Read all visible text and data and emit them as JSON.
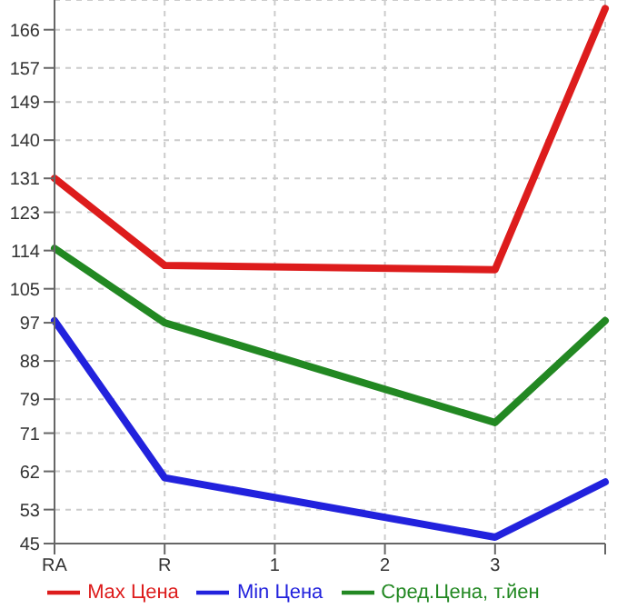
{
  "chart_data": {
    "type": "line",
    "categories": [
      "RA",
      "R",
      "1",
      "2",
      "3",
      null
    ],
    "series": [
      {
        "name": "Max Цена",
        "color": "#dd1c1c",
        "values": [
          131,
          110.5,
          null,
          null,
          109.5,
          171
        ]
      },
      {
        "name": "Min Цена",
        "color": "#2222dd",
        "values": [
          97.5,
          60.5,
          null,
          null,
          46.5,
          59.5
        ]
      },
      {
        "name": "Сред.Цена, т.йен",
        "color": "#228822",
        "values": [
          114.5,
          97,
          null,
          null,
          73.5,
          97.5
        ]
      }
    ],
    "ylim": [
      45,
      173
    ],
    "yticks": [
      45,
      53,
      62,
      71,
      79,
      88,
      97,
      105,
      114,
      123,
      131,
      140,
      149,
      157,
      166
    ],
    "grid": true,
    "legend": "bottom",
    "marker": "none",
    "line_style": "solid"
  }
}
